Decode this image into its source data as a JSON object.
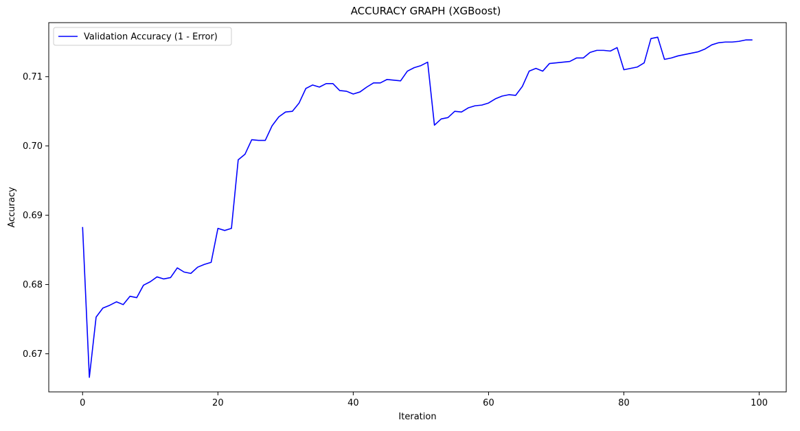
{
  "chart_data": {
    "type": "line",
    "title": "ACCURACY GRAPH (XGBoost)",
    "xlabel": "Iteration",
    "ylabel": "Accuracy",
    "xlim": [
      -5,
      104
    ],
    "ylim": [
      0.6645,
      0.7178
    ],
    "xticks": [
      0,
      20,
      40,
      60,
      80,
      100
    ],
    "yticks": [
      0.67,
      0.68,
      0.69,
      0.7,
      0.71
    ],
    "ytick_labels": [
      "0.67",
      "0.68",
      "0.69",
      "0.70",
      "0.71"
    ],
    "grid": false,
    "legend_position": "top-left",
    "series": [
      {
        "name": "Validation Accuracy (1 - Error)",
        "color": "#0000ff",
        "x": [
          0,
          1,
          2,
          3,
          4,
          5,
          6,
          7,
          8,
          9,
          10,
          11,
          12,
          13,
          14,
          15,
          16,
          17,
          18,
          19,
          20,
          21,
          22,
          23,
          24,
          25,
          26,
          27,
          28,
          29,
          30,
          31,
          32,
          33,
          34,
          35,
          36,
          37,
          38,
          39,
          40,
          41,
          42,
          43,
          44,
          45,
          46,
          47,
          48,
          49,
          50,
          51,
          52,
          53,
          54,
          55,
          56,
          57,
          58,
          59,
          60,
          61,
          62,
          63,
          64,
          65,
          66,
          67,
          68,
          69,
          70,
          71,
          72,
          73,
          74,
          75,
          76,
          77,
          78,
          79,
          80,
          81,
          82,
          83,
          84,
          85,
          86,
          87,
          88,
          89,
          90,
          91,
          92,
          93,
          94,
          95,
          96,
          97,
          98,
          99
        ],
        "y": [
          0.6883,
          0.6666,
          0.6753,
          0.6766,
          0.677,
          0.6775,
          0.6771,
          0.6783,
          0.6781,
          0.6799,
          0.6804,
          0.6811,
          0.6808,
          0.681,
          0.6824,
          0.6818,
          0.6816,
          0.6825,
          0.6829,
          0.6832,
          0.6881,
          0.6878,
          0.6881,
          0.698,
          0.6988,
          0.7009,
          0.7008,
          0.7008,
          0.7029,
          0.7042,
          0.7049,
          0.705,
          0.7062,
          0.7083,
          0.7088,
          0.7085,
          0.709,
          0.709,
          0.708,
          0.7079,
          0.7075,
          0.7078,
          0.7085,
          0.7091,
          0.7091,
          0.7096,
          0.7095,
          0.7094,
          0.7108,
          0.7113,
          0.7116,
          0.7121,
          0.703,
          0.7039,
          0.7041,
          0.705,
          0.7049,
          0.7055,
          0.7058,
          0.7059,
          0.7062,
          0.7068,
          0.7072,
          0.7074,
          0.7073,
          0.7086,
          0.7108,
          0.7112,
          0.7108,
          0.7119,
          0.712,
          0.7121,
          0.7122,
          0.7127,
          0.7127,
          0.7135,
          0.7138,
          0.7138,
          0.7137,
          0.7142,
          0.711,
          0.7112,
          0.7114,
          0.712,
          0.7155,
          0.7157,
          0.7125,
          0.7127,
          0.713,
          0.7132,
          0.7134,
          0.7136,
          0.714,
          0.7146,
          0.7149,
          0.715,
          0.715,
          0.7151,
          0.7153,
          0.7153
        ]
      }
    ]
  }
}
